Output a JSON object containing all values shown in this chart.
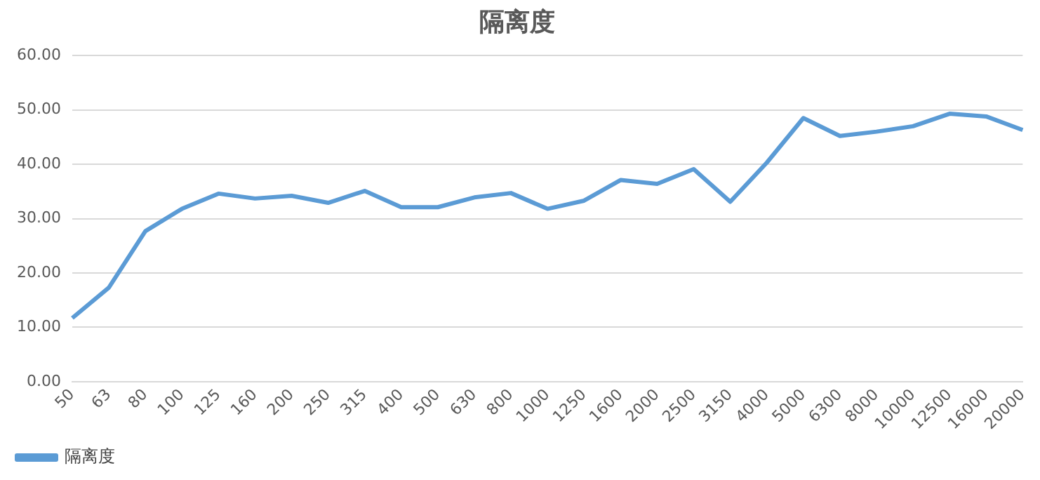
{
  "chart_data": {
    "type": "line",
    "title": "隔离度",
    "categories": [
      "50",
      "63",
      "80",
      "100",
      "125",
      "160",
      "200",
      "250",
      "315",
      "400",
      "500",
      "630",
      "800",
      "1000",
      "1250",
      "1600",
      "2000",
      "2500",
      "3150",
      "4000",
      "5000",
      "6300",
      "8000",
      "10000",
      "12500",
      "16000",
      "20000"
    ],
    "series": [
      {
        "name": "隔离度",
        "color": "#5b9bd5",
        "values": [
          11.7,
          17.3,
          27.7,
          31.8,
          34.6,
          33.7,
          34.2,
          32.9,
          35.1,
          32.1,
          32.1,
          33.9,
          34.7,
          31.8,
          33.3,
          37.1,
          36.4,
          39.1,
          33.1,
          40.3,
          48.5,
          45.2,
          46.0,
          47.0,
          49.3,
          48.8,
          46.3
        ]
      }
    ],
    "ylim": [
      0,
      60
    ],
    "yticks": [
      {
        "value": 0,
        "label": "0.00"
      },
      {
        "value": 10,
        "label": "10.00"
      },
      {
        "value": 20,
        "label": "20.00"
      },
      {
        "value": 30,
        "label": "30.00"
      },
      {
        "value": 40,
        "label": "40.00"
      },
      {
        "value": 50,
        "label": "50.00"
      },
      {
        "value": 60,
        "label": "60.00"
      }
    ],
    "grid": "y",
    "legend": "bottom left",
    "marker": "none",
    "line_style": "solid"
  }
}
